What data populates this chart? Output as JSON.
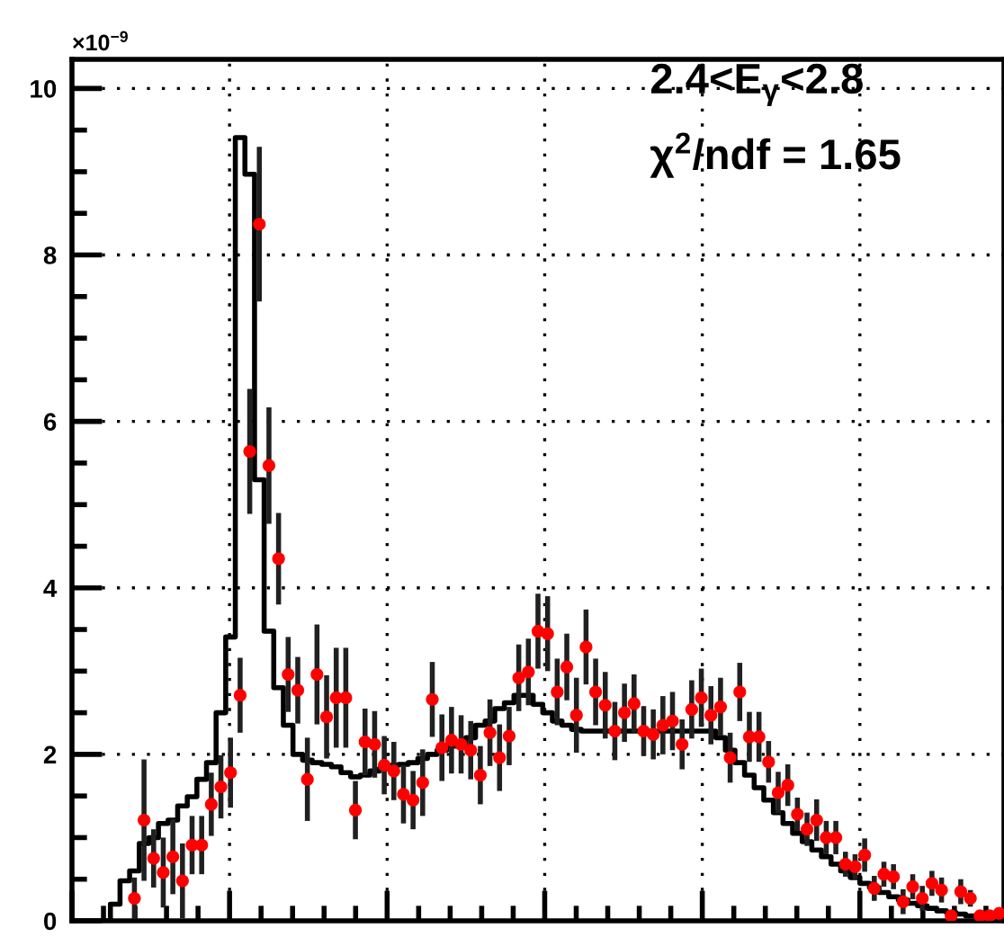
{
  "chart_data": {
    "type": "scatter",
    "annotations": [
      "×10$^{−9}$",
      "2.4<E$_{γ}$<2.8",
      "χ$^{2}$/ndf = 1.65"
    ],
    "categories": [
      null,
      null,
      null,
      null,
      null,
      null,
      null,
      null,
      null,
      null,
      null,
      null,
      null,
      null,
      null,
      null,
      null,
      null,
      null,
      null,
      null,
      null,
      null,
      null,
      null,
      null,
      null,
      null,
      null,
      null,
      null,
      null,
      null,
      null,
      null,
      null,
      null,
      null,
      null,
      null,
      null,
      null,
      null,
      null,
      null,
      null,
      null,
      null,
      null,
      null,
      null,
      null,
      null,
      null,
      null,
      null,
      null,
      null,
      null,
      null,
      null,
      null,
      null,
      null,
      null,
      null,
      null,
      null,
      null,
      null,
      null,
      null,
      null,
      null,
      null,
      null,
      null,
      null,
      null,
      null,
      null,
      null,
      null,
      null,
      null,
      null,
      null,
      null,
      null,
      null,
      null,
      null,
      null,
      null,
      null,
      null,
      null
    ],
    "ylim": [
      0,
      10.35
    ],
    "yticks": [
      0,
      2,
      4,
      6,
      8,
      10
    ],
    "grid": true,
    "series": [
      {
        "type": "step",
        "color": "#000000",
        "values": [
          0,
          0,
          0,
          0,
          0.2,
          0.48,
          0.6,
          0.93,
          1.0,
          1.17,
          1.21,
          1.38,
          1.49,
          1.7,
          1.9,
          2.5,
          3.41,
          9.41,
          8.97,
          5.3,
          3.48,
          2.8,
          2.35,
          2.0,
          1.93,
          1.9,
          1.88,
          1.85,
          1.78,
          1.73,
          1.75,
          1.8,
          1.83,
          1.87,
          1.88,
          1.9,
          1.95,
          2.0,
          2.05,
          2.1,
          2.1,
          2.2,
          2.35,
          2.4,
          2.55,
          2.62,
          2.71,
          2.71,
          2.6,
          2.5,
          2.4,
          2.35,
          2.3,
          2.28,
          2.28,
          2.28,
          2.28,
          2.28,
          2.28,
          2.28,
          2.28,
          2.28,
          2.28,
          2.28,
          2.28,
          2.28,
          2.28,
          2.2,
          2.05,
          1.9,
          1.75,
          1.6,
          1.45,
          1.3,
          1.17,
          1.05,
          0.95,
          0.85,
          0.77,
          0.68,
          0.6,
          0.52,
          0.45,
          0.4,
          0.34,
          0.29,
          0.25,
          0.21,
          0.18,
          0.15,
          0.12,
          0.1,
          0.08,
          0.06,
          0.05,
          0.04,
          0.03
        ]
      },
      {
        "color": "#ff0000",
        "marker": "circle",
        "values": [
          null,
          null,
          null,
          null,
          null,
          null,
          0.27,
          1.21,
          0.75,
          0.58,
          0.77,
          0.48,
          0.91,
          0.91,
          1.4,
          1.61,
          1.78,
          2.71,
          5.64,
          8.37,
          5.47,
          4.35,
          2.96,
          2.77,
          1.7,
          2.96,
          2.45,
          2.68,
          2.68,
          1.33,
          2.15,
          2.12,
          1.87,
          1.8,
          1.52,
          1.45,
          1.66,
          2.66,
          2.08,
          2.17,
          2.12,
          2.05,
          1.75,
          2.26,
          1.96,
          2.22,
          2.92,
          2.99,
          3.48,
          3.45,
          2.75,
          3.05,
          2.47,
          3.29,
          2.75,
          2.59,
          2.28,
          2.5,
          2.61,
          2.28,
          2.24,
          2.35,
          2.4,
          2.12,
          2.54,
          2.68,
          2.47,
          2.57,
          1.96,
          2.75,
          2.21,
          2.21,
          1.91,
          1.54,
          1.63,
          1.28,
          1.1,
          1.21,
          1.0,
          1.0,
          0.68,
          0.65,
          0.79,
          0.39,
          0.56,
          0.53,
          0.23,
          0.41,
          0.27,
          0.45,
          0.37,
          0.06,
          0.35,
          0.27,
          0.06,
          0.06,
          0.09
        ],
        "errors": [
          null,
          null,
          null,
          null,
          null,
          null,
          0.25,
          0.73,
          0.35,
          0.42,
          0.45,
          0.45,
          0.35,
          0.35,
          0.38,
          0.38,
          0.42,
          0.45,
          0.75,
          0.93,
          0.7,
          0.55,
          0.45,
          0.4,
          0.5,
          0.6,
          0.5,
          0.6,
          0.6,
          0.35,
          0.4,
          0.4,
          0.35,
          0.35,
          0.35,
          0.35,
          0.4,
          0.45,
          0.4,
          0.4,
          0.35,
          0.35,
          0.35,
          0.4,
          0.4,
          0.35,
          0.4,
          0.4,
          0.45,
          0.45,
          0.4,
          0.4,
          0.45,
          0.45,
          0.4,
          0.4,
          0.35,
          0.35,
          0.35,
          0.3,
          0.3,
          0.35,
          0.35,
          0.3,
          0.35,
          0.35,
          0.35,
          0.35,
          0.3,
          0.35,
          0.3,
          0.3,
          0.25,
          0.25,
          0.25,
          0.2,
          0.2,
          0.25,
          0.2,
          0.2,
          0.15,
          0.15,
          0.2,
          0.15,
          0.15,
          0.15,
          0.15,
          0.15,
          0.15,
          0.15,
          0.15,
          0.06,
          0.15,
          0.1,
          0.05,
          0.05,
          0.05
        ]
      }
    ]
  }
}
